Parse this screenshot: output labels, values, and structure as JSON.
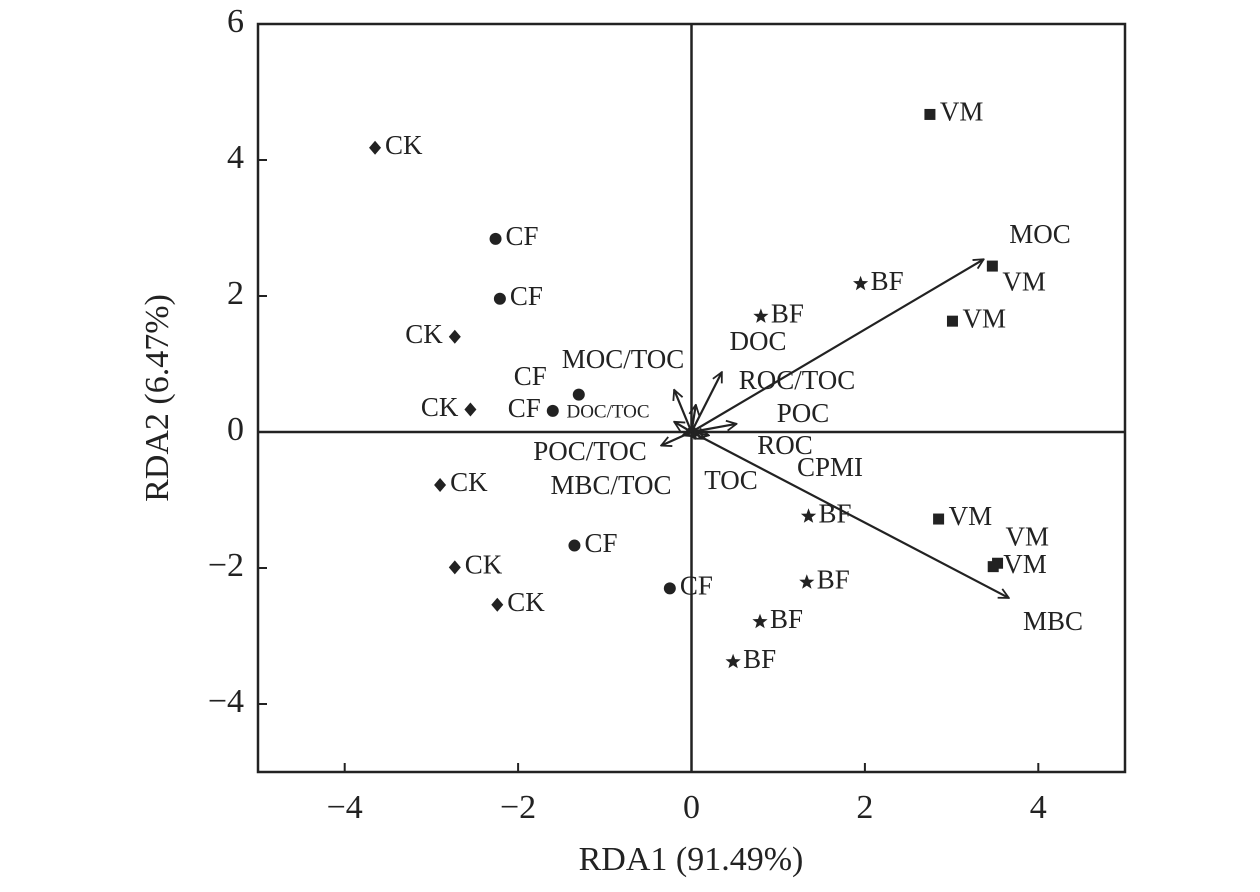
{
  "chart_data": {
    "type": "scatter",
    "xlabel": "RDA1 (91.49%)",
    "ylabel": "RDA2 (6.47%)",
    "xlim": [
      -5,
      5
    ],
    "ylim": [
      -5,
      6
    ],
    "xticks": [
      {
        "value": -4,
        "label": "−4"
      },
      {
        "value": -2,
        "label": "−2"
      },
      0,
      2,
      4
    ],
    "yticks": [
      {
        "value": -4,
        "label": "−4"
      },
      {
        "value": -2,
        "label": "−2"
      },
      0,
      2,
      4,
      6
    ],
    "series": [
      {
        "name": "CK",
        "marker": "diamond",
        "color": "#222",
        "x": [
          -3.65,
          -2.73,
          -2.55,
          -2.9,
          -2.73,
          -2.24
        ],
        "y": [
          4.18,
          1.4,
          0.33,
          -0.78,
          -1.99,
          -2.54
        ]
      },
      {
        "name": "CF",
        "marker": "circle",
        "color": "#222",
        "x": [
          -2.26,
          -2.21,
          -1.3,
          -1.6,
          -1.35,
          -0.25
        ],
        "y": [
          2.84,
          1.96,
          0.55,
          0.31,
          -1.67,
          -2.3
        ]
      },
      {
        "name": "BF",
        "marker": "star",
        "color": "#222",
        "x": [
          0.8,
          1.95,
          1.35,
          1.33,
          0.79,
          0.48
        ],
        "y": [
          1.7,
          2.18,
          -1.24,
          -2.21,
          -2.79,
          -3.38
        ]
      },
      {
        "name": "VM",
        "marker": "square",
        "color": "#222",
        "x": [
          2.75,
          3.47,
          3.01,
          2.85,
          3.53,
          3.48
        ],
        "y": [
          4.67,
          2.44,
          1.63,
          -1.28,
          -1.93,
          -1.98
        ]
      }
    ],
    "vectors": [
      {
        "name": "MOC",
        "x": 3.37,
        "y": 2.54
      },
      {
        "name": "MBC",
        "x": 3.66,
        "y": -2.44
      },
      {
        "name": "DOC",
        "x": 0.35,
        "y": 0.88
      },
      {
        "name": "ROC/TOC",
        "x": 0.05,
        "y": 0.4
      },
      {
        "name": "POC",
        "x": 0.52,
        "y": 0.12
      },
      {
        "name": "ROC",
        "x": 0.2,
        "y": -0.05
      },
      {
        "name": "CPMI",
        "x": 0.15,
        "y": -0.1
      },
      {
        "name": "TOC",
        "x": 0.05,
        "y": -0.1
      },
      {
        "name": "MBC/TOC",
        "x": -0.1,
        "y": -0.05
      },
      {
        "name": "POC/TOC",
        "x": -0.35,
        "y": -0.2
      },
      {
        "name": "DOC/TOC",
        "x": -0.2,
        "y": 0.15
      },
      {
        "name": "MOC/TOC",
        "x": -0.2,
        "y": 0.62
      }
    ]
  }
}
